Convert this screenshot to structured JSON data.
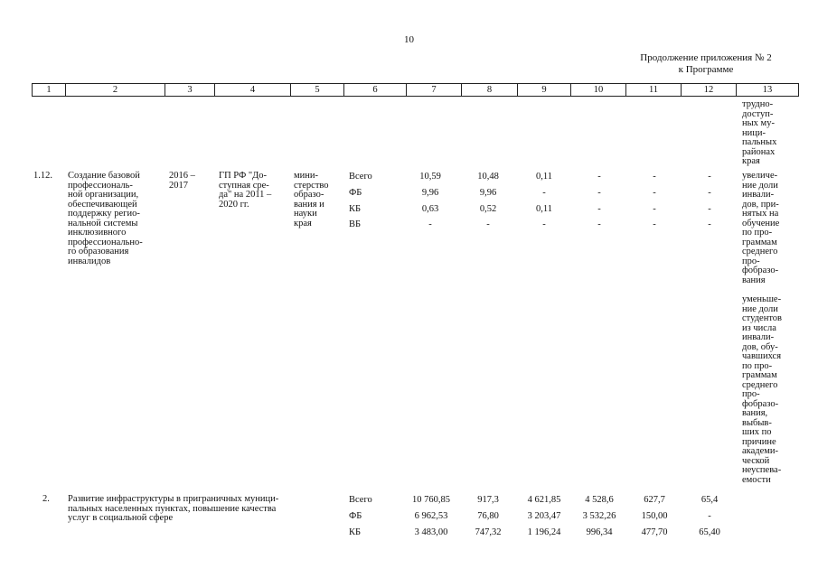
{
  "page_number": "10",
  "continuation": [
    "Продолжение приложения № 2",
    "к Программе"
  ],
  "header_columns": [
    "1",
    "2",
    "3",
    "4",
    "5",
    "6",
    "7",
    "8",
    "9",
    "10",
    "11",
    "12",
    "13"
  ],
  "top_col13": "трудно-\nдоступ-\nных му-\nници-\nпальных\nрайонах\nкрая",
  "row1": {
    "num": "1.12.",
    "name": "Создание базовой\nпрофессиональ-\nной организации,\nобеспечивающей\nподдержку регио-\nнальной системы\nинклюзивного\nпрофессионально-\nго образования\nинвалидов",
    "period": "2016 –\n2017",
    "program": "ГП РФ \"До-\nступная сре-\nда\" на 2011 –\n2020 гг.",
    "executor": "мини-\nстерство\nобразо-\nвания и\nнауки\nкрая",
    "sources": [
      "Всего",
      "ФБ",
      "КБ",
      "ВБ"
    ],
    "c7": [
      "10,59",
      "9,96",
      "0,63",
      "-"
    ],
    "c8": [
      "10,48",
      "9,96",
      "0,52",
      "-"
    ],
    "c9": [
      "0,11",
      "-",
      "0,11",
      "-"
    ],
    "c10": [
      "-",
      "-",
      "-",
      "-"
    ],
    "c11": [
      "-",
      "-",
      "-",
      "-"
    ],
    "c12": [
      "-",
      "-",
      "-",
      "-"
    ],
    "indicator1": "увеличе-\nние доли\nинвали-\nдов, при-\nнятых на\nобучение\nпо про-\nграммам\nсреднего\nпро-\nфобразо-\nвания",
    "indicator2": "уменьше-\nние доли\nстудентов\nиз числа\nинвали-\nдов, обу-\nчавшихся\nпо про-\nграммам\nсреднего\nпро-\nфобразо-\nвания,\nвыбыв-\nших по\nпричине\nакадеми-\nческой\nнеуспева-\nемости"
  },
  "row2": {
    "num": "2.",
    "name": "Развитие инфраструктуры в приграничных муници-\nпальных населенных пунктах, повышение качества\nуслуг в социальной сфере",
    "sources": [
      "Всего",
      "ФБ",
      "КБ"
    ],
    "c7": [
      "10 760,85",
      "6 962,53",
      "3 483,00"
    ],
    "c8": [
      "917,3",
      "76,80",
      "747,32"
    ],
    "c9": [
      "4 621,85",
      "3 203,47",
      "1 196,24"
    ],
    "c10": [
      "4 528,6",
      "3 532,26",
      "996,34"
    ],
    "c11": [
      "627,7",
      "150,00",
      "477,70"
    ],
    "c12": [
      "65,4",
      "-",
      "65,40"
    ]
  }
}
